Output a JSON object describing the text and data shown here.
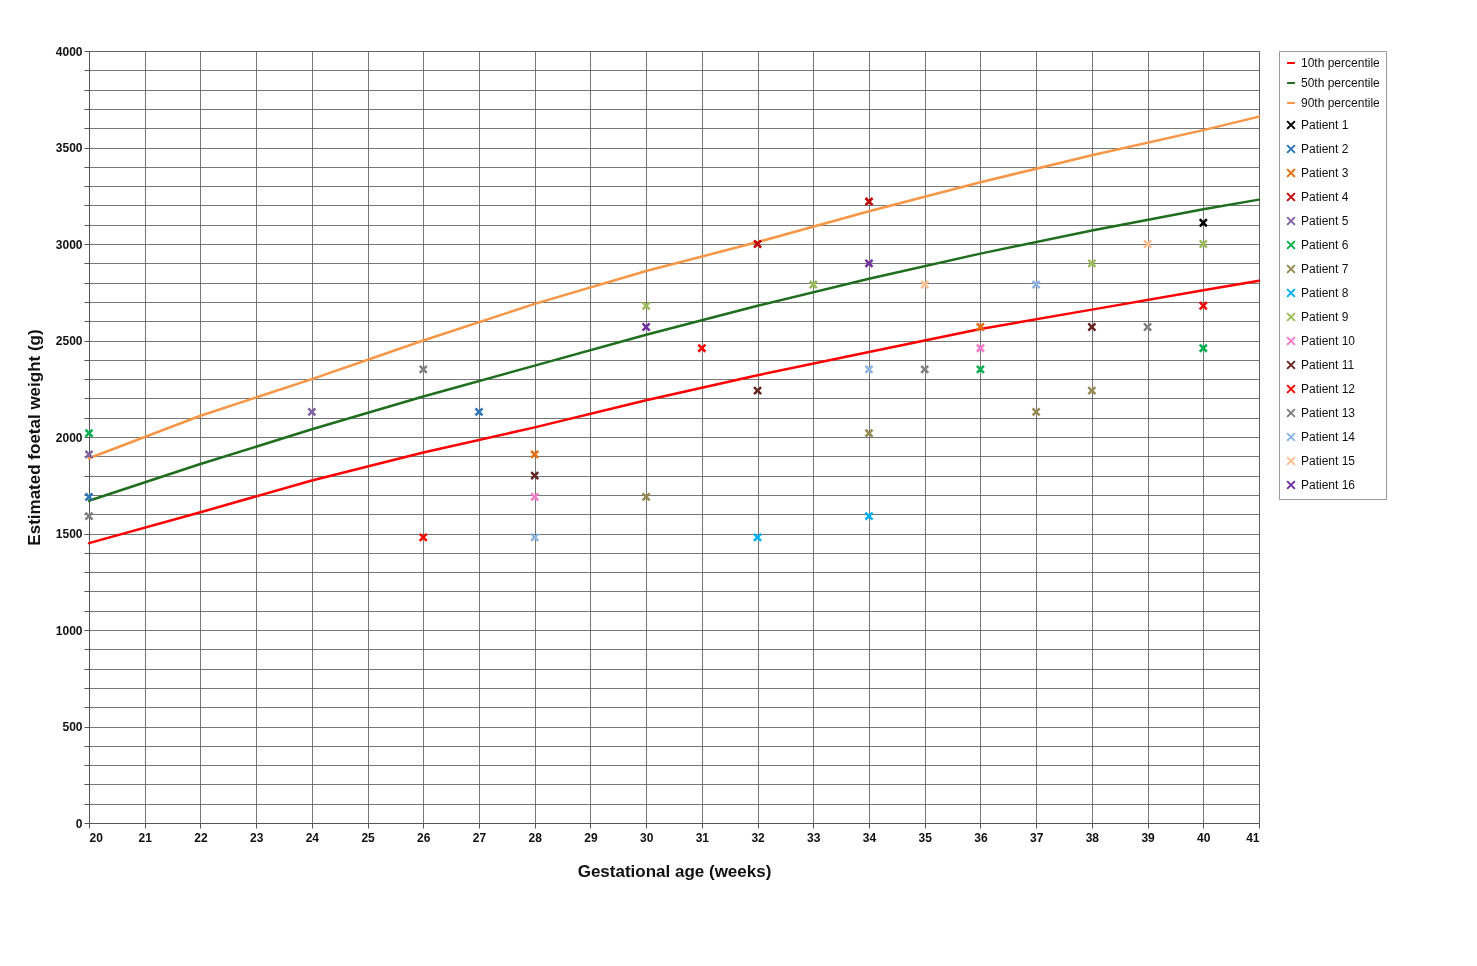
{
  "chart_data": {
    "type": "scatter",
    "xlabel": "Gestational age (weeks)",
    "ylabel": "Estimated foetal weight (g)",
    "xlim": [
      20,
      41
    ],
    "xticks": [
      20,
      21,
      22,
      23,
      24,
      25,
      26,
      27,
      28,
      29,
      30,
      31,
      32,
      33,
      34,
      35,
      36,
      37,
      38,
      39,
      40,
      41
    ],
    "ylim": [
      0,
      4000
    ],
    "yticks": [
      0,
      {
        "value": 100,
        "label": null
      },
      {
        "value": 200,
        "label": null
      },
      {
        "value": 300,
        "label": null
      },
      {
        "value": 400,
        "label": null
      },
      500,
      {
        "value": 600,
        "label": null
      },
      {
        "value": 700,
        "label": null
      },
      {
        "value": 800,
        "label": null
      },
      {
        "value": 900,
        "label": null
      },
      1000,
      {
        "value": 1100,
        "label": null
      },
      {
        "value": 1200,
        "label": null
      },
      {
        "value": 1300,
        "label": null
      },
      {
        "value": 1400,
        "label": null
      },
      1500,
      {
        "value": 1600,
        "label": null
      },
      {
        "value": 1700,
        "label": null
      },
      {
        "value": 1800,
        "label": null
      },
      {
        "value": 1900,
        "label": null
      },
      2000,
      {
        "value": 2100,
        "label": null
      },
      {
        "value": 2200,
        "label": null
      },
      {
        "value": 2300,
        "label": null
      },
      {
        "value": 2400,
        "label": null
      },
      2500,
      {
        "value": 2600,
        "label": null
      },
      {
        "value": 2700,
        "label": null
      },
      {
        "value": 2800,
        "label": null
      },
      {
        "value": 2900,
        "label": null
      },
      3000,
      {
        "value": 3100,
        "label": null
      },
      {
        "value": 3200,
        "label": null
      },
      {
        "value": 3300,
        "label": null
      },
      {
        "value": 3400,
        "label": null
      },
      3500,
      {
        "value": 3600,
        "label": null
      },
      {
        "value": 3700,
        "label": null
      },
      {
        "value": 3800,
        "label": null
      },
      {
        "value": 3900,
        "label": null
      },
      4000
    ],
    "grid": true,
    "legend": "right",
    "marker": "cross",
    "series": [
      {
        "name": "10th percentile",
        "type": "line",
        "marker": "none",
        "color": "#ff0000",
        "x": [
          20,
          22,
          24,
          26,
          28,
          30,
          32,
          34,
          36,
          38,
          40,
          41
        ],
        "values": [
          1450,
          1610,
          1775,
          1920,
          2050,
          2190,
          2320,
          2440,
          2560,
          2660,
          2760,
          2810
        ]
      },
      {
        "name": "50th percentile",
        "type": "line",
        "marker": "none",
        "color": "#1e6e1e",
        "x": [
          20,
          22,
          24,
          26,
          28,
          30,
          32,
          34,
          36,
          38,
          40,
          41
        ],
        "values": [
          1670,
          1860,
          2040,
          2210,
          2370,
          2530,
          2680,
          2820,
          2950,
          3070,
          3180,
          3230
        ]
      },
      {
        "name": "90th percentile",
        "type": "line",
        "marker": "none",
        "color": "#f79646",
        "x": [
          20,
          22,
          24,
          26,
          28,
          30,
          32,
          34,
          36,
          38,
          40,
          41
        ],
        "values": [
          1890,
          2110,
          2300,
          2500,
          2690,
          2860,
          3010,
          3170,
          3320,
          3460,
          3590,
          3660
        ]
      },
      {
        "name": "Patient 1",
        "color": "#000000",
        "x": [
          40
        ],
        "values": [
          3110
        ]
      },
      {
        "name": "Patient 2",
        "color": "#2e75b6",
        "x": [
          20,
          27
        ],
        "values": [
          1690,
          2130
        ]
      },
      {
        "name": "Patient 3",
        "color": "#e46c0a",
        "x": [
          28,
          36
        ],
        "values": [
          1910,
          2570
        ]
      },
      {
        "name": "Patient 4",
        "color": "#c00000",
        "x": [
          32,
          34
        ],
        "values": [
          3000,
          3220
        ]
      },
      {
        "name": "Patient 5",
        "color": "#8064a2",
        "x": [
          20,
          24
        ],
        "values": [
          1910,
          2130
        ]
      },
      {
        "name": "Patient 6",
        "color": "#00b050",
        "x": [
          20,
          36,
          40
        ],
        "values": [
          2020,
          2350,
          2460
        ]
      },
      {
        "name": "Patient 7",
        "color": "#948a54",
        "x": [
          30,
          34,
          37,
          38
        ],
        "values": [
          1690,
          2020,
          2130,
          2240
        ]
      },
      {
        "name": "Patient 8",
        "color": "#00b0f0",
        "x": [
          32,
          34
        ],
        "values": [
          1480,
          1590
        ]
      },
      {
        "name": "Patient 9",
        "color": "#9bbb59",
        "x": [
          30,
          33,
          38,
          40
        ],
        "values": [
          2680,
          2790,
          2900,
          3000
        ]
      },
      {
        "name": "Patient 10",
        "color": "#f27ac8",
        "x": [
          28,
          36
        ],
        "values": [
          1690,
          2460
        ]
      },
      {
        "name": "Patient 11",
        "color": "#632523",
        "x": [
          28,
          32,
          38
        ],
        "values": [
          1800,
          2240,
          2570
        ]
      },
      {
        "name": "Patient 12",
        "color": "#ff0000",
        "x": [
          26,
          31,
          40
        ],
        "values": [
          1480,
          2460,
          2680
        ]
      },
      {
        "name": "Patient 13",
        "color": "#808080",
        "x": [
          20,
          26,
          35,
          39
        ],
        "values": [
          1590,
          2350,
          2350,
          2570
        ]
      },
      {
        "name": "Patient 14",
        "color": "#8db3e2",
        "x": [
          28,
          34,
          37
        ],
        "values": [
          1480,
          2350,
          2790
        ]
      },
      {
        "name": "Patient 15",
        "color": "#fabf8f",
        "x": [
          35,
          39
        ],
        "values": [
          2790,
          3000
        ]
      },
      {
        "name": "Patient 16",
        "color": "#7030a0",
        "x": [
          30,
          34
        ],
        "values": [
          2570,
          2900
        ]
      }
    ]
  }
}
